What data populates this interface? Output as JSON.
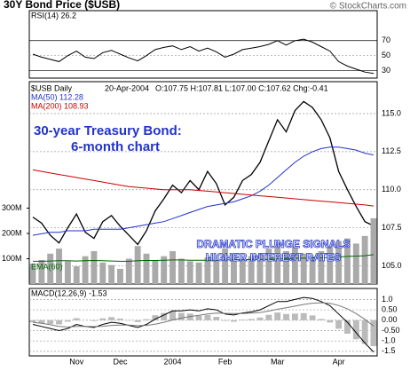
{
  "title": "30Y Bond Price ($USB)",
  "credit": "© StockCharts.com",
  "chart_data": [
    {
      "type": "line",
      "label": "RSI(14) 26.2",
      "ylim": [
        20,
        110
      ],
      "yticks": [
        70,
        50,
        30
      ],
      "series": [
        {
          "name": "RSI(14)",
          "color": "#000000",
          "values": [
            52,
            48,
            45,
            42,
            50,
            56,
            48,
            46,
            54,
            57,
            52,
            47,
            43,
            50,
            58,
            61,
            63,
            58,
            62,
            56,
            60,
            55,
            48,
            52,
            58,
            60,
            62,
            65,
            70,
            64,
            70,
            72,
            68,
            62,
            56,
            42,
            36,
            32,
            28,
            26.2
          ]
        }
      ]
    },
    {
      "type": "line",
      "label": "$USB Daily",
      "date": "20-Apr-2004",
      "quote": "O:107.75 H:107.81 L:107.00 C:107.62 Chg:-0.41",
      "annotations": [
        [
          "30-year Treasury Bond:",
          "6-month chart"
        ],
        [
          "DRAMATIC PLUNGE SIGNALS",
          "HIGHER INTEREST RATES"
        ]
      ],
      "ylim": [
        103.8,
        117.1
      ],
      "yticks": [
        {
          "value": 115,
          "label": "115.0"
        },
        {
          "value": 112.5,
          "label": "112.5"
        },
        {
          "value": 110,
          "label": "110.0"
        },
        {
          "value": 107.5,
          "label": "107.5"
        },
        {
          "value": 105,
          "label": "105.0"
        }
      ],
      "series": [
        {
          "name": "$USB",
          "color": "#000000",
          "values": [
            108.2,
            107.8,
            107.0,
            106.5,
            107.5,
            108.4,
            107.2,
            106.8,
            107.9,
            108.3,
            107.6,
            107.0,
            106.4,
            107.3,
            108.6,
            109.4,
            110.3,
            109.8,
            110.6,
            110.0,
            111.2,
            110.4,
            109.0,
            109.5,
            110.6,
            111.0,
            111.8,
            113.2,
            114.6,
            113.8,
            115.2,
            115.8,
            115.4,
            114.6,
            113.4,
            111.2,
            110.0,
            108.9,
            107.9,
            107.62
          ]
        },
        {
          "name": "MA(50) 112.28",
          "color": "#2233cc",
          "values": [
            107.0,
            107.1,
            107.2,
            107.2,
            107.3,
            107.3,
            107.3,
            107.4,
            107.4,
            107.4,
            107.4,
            107.5,
            107.6,
            107.7,
            107.8,
            107.9,
            108.1,
            108.3,
            108.5,
            108.7,
            108.9,
            109.0,
            109.1,
            109.2,
            109.4,
            109.6,
            109.9,
            110.3,
            110.8,
            111.3,
            111.8,
            112.2,
            112.5,
            112.7,
            112.8,
            112.8,
            112.7,
            112.6,
            112.4,
            112.28
          ]
        },
        {
          "name": "MA(200) 108.93",
          "color": "#cc0000",
          "values": [
            111.3,
            111.2,
            111.1,
            111.0,
            110.9,
            110.8,
            110.7,
            110.6,
            110.5,
            110.4,
            110.3,
            110.2,
            110.15,
            110.1,
            110.05,
            110.0,
            110.0,
            110.0,
            110.0,
            109.95,
            109.9,
            109.85,
            109.8,
            109.75,
            109.7,
            109.65,
            109.6,
            109.55,
            109.5,
            109.45,
            109.4,
            109.35,
            109.3,
            109.25,
            109.2,
            109.15,
            109.1,
            109.05,
            109.0,
            108.93
          ]
        }
      ]
    },
    {
      "type": "bar",
      "ylim": [
        0,
        800
      ],
      "yticks": [
        {
          "value": 300,
          "label": "300M"
        },
        {
          "value": 200,
          "label": "200M"
        },
        {
          "value": 100,
          "label": "100M"
        }
      ],
      "series": [
        {
          "name": "Volume",
          "color": "#aaaaaa",
          "type": "bar",
          "values": [
            80,
            95,
            120,
            140,
            90,
            70,
            110,
            130,
            85,
            75,
            60,
            100,
            150,
            120,
            95,
            110,
            130,
            100,
            90,
            85,
            105,
            95,
            140,
            120,
            100,
            110,
            115,
            140,
            160,
            130,
            150,
            120,
            110,
            130,
            150,
            170,
            180,
            160,
            190,
            260
          ]
        },
        {
          "name": "EMA(60)",
          "color": "#006600",
          "type": "line",
          "values": [
            90,
            90,
            91,
            92,
            92,
            91,
            92,
            93,
            92,
            91,
            90,
            90,
            92,
            93,
            93,
            94,
            95,
            95,
            94,
            94,
            94,
            94,
            95,
            96,
            96,
            97,
            97,
            98,
            100,
            101,
            102,
            102,
            103,
            104,
            105,
            107,
            109,
            110,
            112,
            116
          ]
        }
      ]
    },
    {
      "type": "line",
      "label": "MACD(12,26,9) -1.53",
      "ylim": [
        -1.72,
        1.53
      ],
      "categories": [
        null,
        null,
        null,
        null,
        null,
        "Nov",
        null,
        null,
        null,
        null,
        "Dec",
        null,
        null,
        null,
        null,
        null,
        "2004",
        null,
        null,
        null,
        null,
        null,
        "Feb",
        null,
        null,
        null,
        null,
        null,
        "Mar",
        null,
        null,
        null,
        null,
        null,
        null,
        "Apr",
        null,
        null,
        null,
        null
      ],
      "yticks": [
        {
          "value": 1,
          "label": "1.0"
        },
        {
          "value": 0.5,
          "label": "0.50"
        },
        {
          "value": 0,
          "label": "0.00"
        },
        {
          "value": -0.5,
          "label": "-0.50"
        },
        {
          "value": -1,
          "label": "-1.0"
        },
        {
          "value": -1.5,
          "label": "-1.5"
        }
      ],
      "series": [
        {
          "name": "Histogram",
          "color": "#bbbbbb",
          "type": "bar",
          "values": [
            -0.1,
            -0.15,
            -0.18,
            -0.2,
            -0.07,
            0.1,
            0,
            -0.04,
            0.09,
            0.15,
            0.08,
            -0.02,
            -0.09,
            0.05,
            0.24,
            0.35,
            0.44,
            0.35,
            0.32,
            0.21,
            0.25,
            0.16,
            -0.03,
            -0.07,
            0.03,
            0.06,
            0.13,
            0.26,
            0.37,
            0.3,
            0.32,
            0.34,
            0.23,
            0.06,
            -0.11,
            -0.41,
            -0.65,
            -0.92,
            -1.14,
            -1.25
          ]
        },
        {
          "name": "MACD",
          "color": "#000000",
          "type": "line",
          "values": [
            -0.2,
            -0.3,
            -0.4,
            -0.5,
            -0.4,
            -0.2,
            -0.3,
            -0.35,
            -0.2,
            -0.1,
            -0.15,
            -0.25,
            -0.35,
            -0.2,
            0.05,
            0.25,
            0.45,
            0.45,
            0.5,
            0.45,
            0.55,
            0.5,
            0.3,
            0.25,
            0.35,
            0.4,
            0.5,
            0.7,
            0.9,
            0.9,
            1.0,
            1.1,
            1.05,
            0.9,
            0.7,
            0.3,
            -0.1,
            -0.6,
            -1.1,
            -1.53
          ]
        },
        {
          "name": "Signal",
          "color": "#777777",
          "type": "line",
          "values": [
            -0.1,
            -0.15,
            -0.22,
            -0.3,
            -0.33,
            -0.3,
            -0.3,
            -0.31,
            -0.29,
            -0.25,
            -0.23,
            -0.23,
            -0.26,
            -0.25,
            -0.19,
            -0.1,
            0.01,
            0.1,
            0.18,
            0.24,
            0.3,
            0.34,
            0.33,
            0.32,
            0.32,
            0.34,
            0.37,
            0.44,
            0.53,
            0.6,
            0.68,
            0.76,
            0.82,
            0.84,
            0.81,
            0.71,
            0.55,
            0.32,
            0.04,
            -0.28
          ]
        }
      ]
    }
  ]
}
